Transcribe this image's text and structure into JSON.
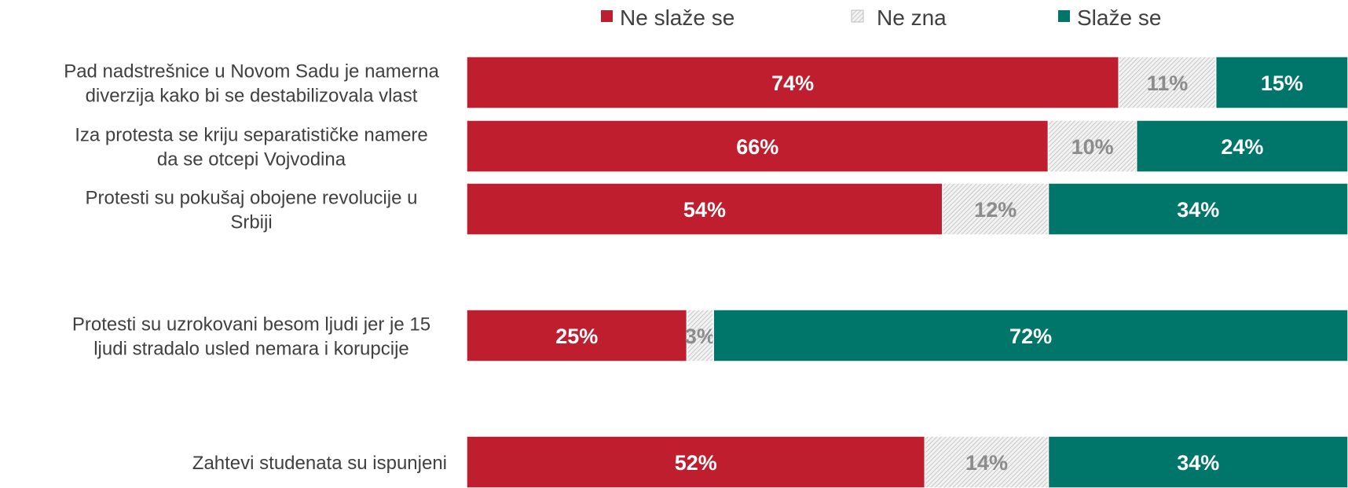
{
  "chart_data": {
    "type": "bar",
    "orientation": "horizontal",
    "stacked": true,
    "percent_stacked": true,
    "grid": false,
    "legend_position": "top",
    "categories": [
      [
        "Pad nadstrešnice u Novom Sadu je namerna",
        "diverzija kako bi se destabilizovala vlast"
      ],
      [
        "Iza protesta se kriju separatističke namere",
        "da se otcepi Vojvodina"
      ],
      [
        "Protesti su pokušaj obojene revolucije u",
        "Srbiji"
      ],
      [
        "Protesti su uzrokovani besom ljudi jer je 15",
        "ljudi stradalo usled nemara i korupcije"
      ],
      [
        "Zahtevi studenata su ispunjeni"
      ]
    ],
    "series": [
      {
        "name": "Ne slaže se",
        "color": "#be1e2d",
        "values": [
          74,
          66,
          54,
          25,
          52
        ],
        "labels": [
          "74%",
          "66%",
          "54%",
          "25%",
          "52%"
        ]
      },
      {
        "name": "Ne zna",
        "color": "#d9d9d9",
        "pattern": "hatched",
        "values": [
          11,
          10,
          12,
          3,
          14
        ],
        "labels": [
          "11%",
          "10%",
          "12%",
          "3%",
          "14%"
        ]
      },
      {
        "name": "Slaže se",
        "color": "#00766a",
        "values": [
          15,
          24,
          34,
          72,
          34
        ],
        "labels": [
          "15%",
          "24%",
          "34%",
          "72%",
          "34%"
        ]
      }
    ]
  }
}
